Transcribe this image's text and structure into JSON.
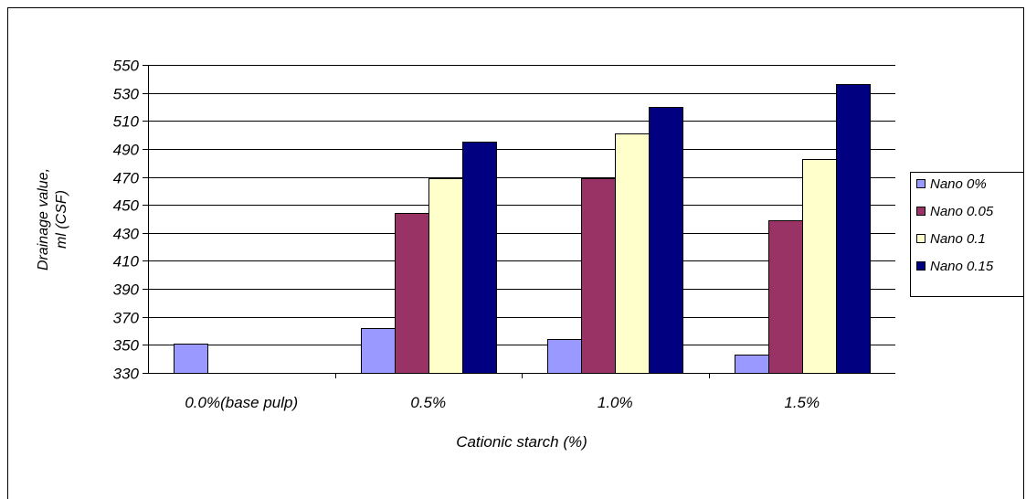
{
  "chart_data": {
    "type": "bar",
    "title": "",
    "xlabel": "Cationic starch (%)",
    "ylabel_line1": "Drainage value,",
    "ylabel_line2": "ml (CSF)",
    "categories": [
      "0.0%(base pulp)",
      "0.5%",
      "1.0%",
      "1.5%"
    ],
    "ylim": [
      330,
      550
    ],
    "yticks": [
      "330",
      "350",
      "370",
      "390",
      "410",
      "430",
      "450",
      "470",
      "490",
      "510",
      "530",
      "550"
    ],
    "grid": true,
    "legend_position": "right",
    "series": [
      {
        "name": "Nano 0%",
        "color": "#9999ff",
        "values": [
          351,
          362,
          354,
          343
        ]
      },
      {
        "name": "Nano 0.05",
        "color": "#993366",
        "values": [
          null,
          444,
          469,
          439
        ]
      },
      {
        "name": "Nano 0.1",
        "color": "#ffffcc",
        "values": [
          null,
          469,
          501,
          483
        ]
      },
      {
        "name": "Nano 0.15",
        "color": "#000080",
        "values": [
          null,
          495,
          520,
          536
        ]
      }
    ]
  }
}
